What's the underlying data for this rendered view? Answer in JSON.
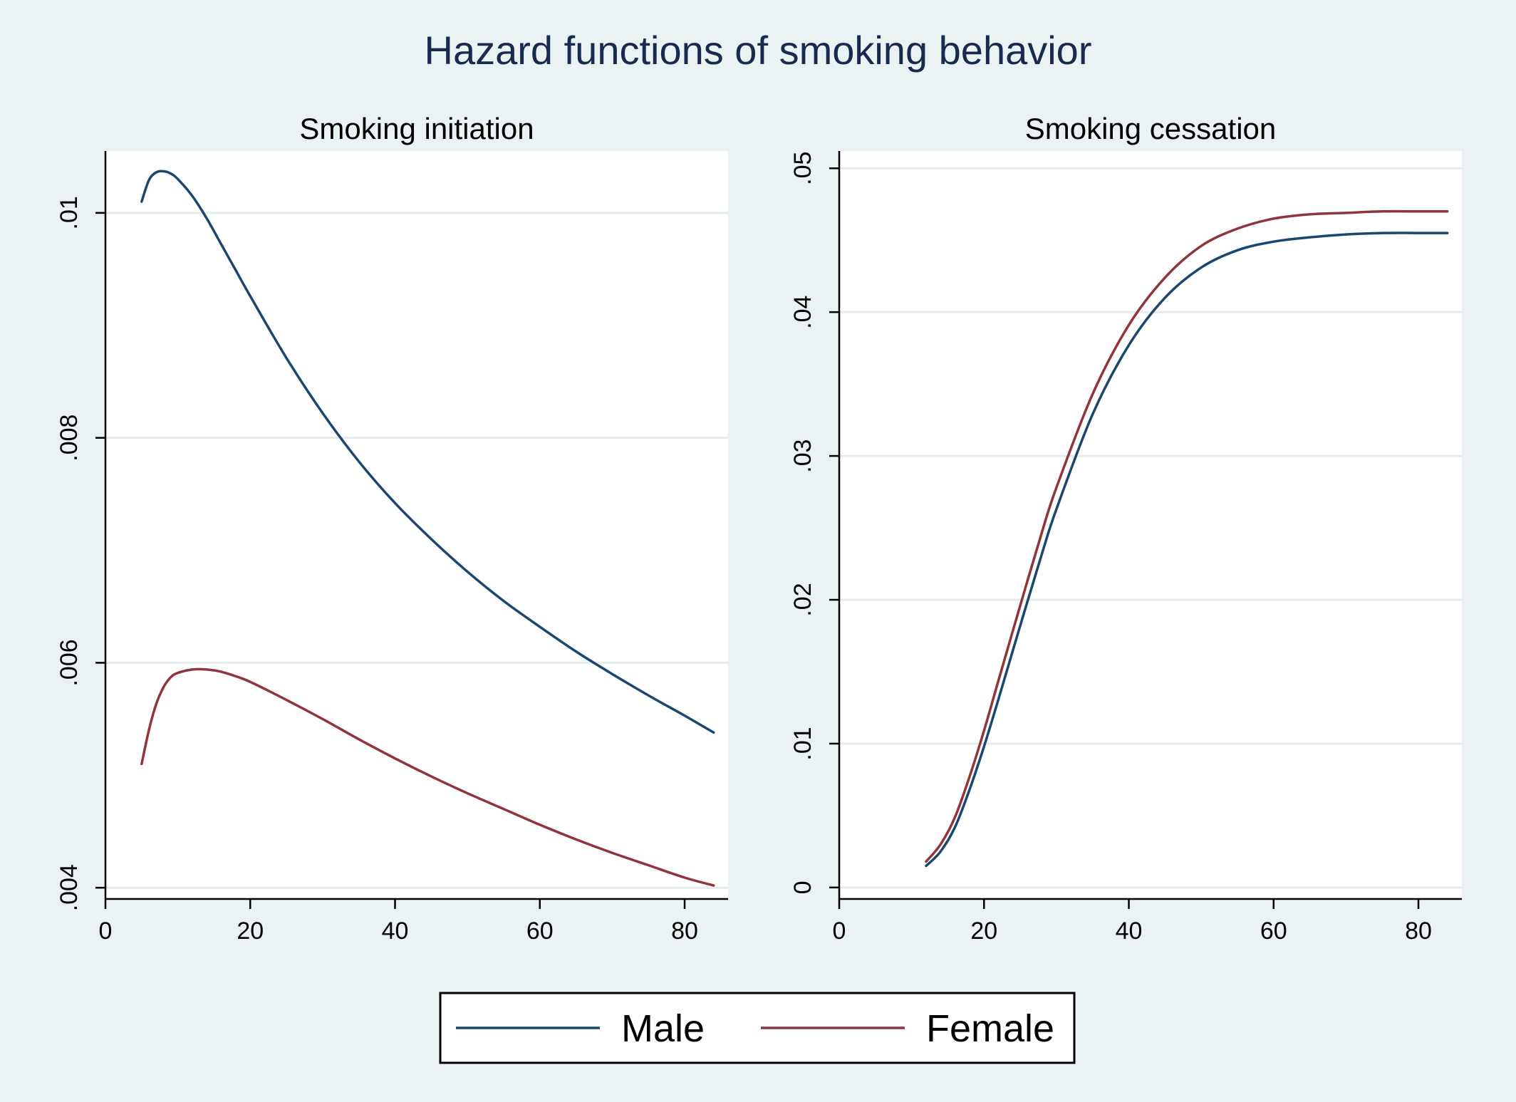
{
  "title": "Hazard functions of smoking behavior",
  "colors": {
    "background": "#eaf2f3",
    "plot_background": "#ffffff",
    "grid": "#e4ecee",
    "male": "#1a476f",
    "female": "#90353b"
  },
  "legend": {
    "position": "bottom",
    "items": [
      {
        "label": "Male",
        "color_key": "male"
      },
      {
        "label": "Female",
        "color_key": "female"
      }
    ]
  },
  "chart_data": [
    {
      "type": "line",
      "title": "Smoking initiation",
      "xlabel": "",
      "ylabel": "",
      "xlim": [
        0,
        86
      ],
      "ylim": [
        0.0039,
        0.01055
      ],
      "xticks": [
        0,
        20,
        40,
        60,
        80
      ],
      "xtick_labels": [
        "0",
        "20",
        "40",
        "60",
        "80"
      ],
      "yticks": [
        0.004,
        0.006,
        0.008,
        0.01
      ],
      "ytick_labels": [
        ".004",
        ".006",
        ".008",
        ".01"
      ],
      "grid": true,
      "series": [
        {
          "name": "Male",
          "color_key": "male",
          "x": [
            5,
            6,
            7,
            8,
            9,
            10,
            12,
            14,
            16,
            18,
            20,
            25,
            30,
            35,
            40,
            45,
            50,
            55,
            60,
            65,
            70,
            75,
            80,
            84
          ],
          "y": [
            0.0101,
            0.01029,
            0.01036,
            0.01037,
            0.01035,
            0.0103,
            0.01015,
            0.00995,
            0.00972,
            0.00949,
            0.00926,
            0.00871,
            0.00822,
            0.00779,
            0.00742,
            0.0071,
            0.00681,
            0.00655,
            0.00632,
            0.0061,
            0.0059,
            0.00571,
            0.00553,
            0.00538
          ]
        },
        {
          "name": "Female",
          "color_key": "female",
          "x": [
            5,
            6,
            7,
            8,
            9,
            10,
            12,
            14,
            16,
            18,
            20,
            25,
            30,
            35,
            40,
            45,
            50,
            55,
            60,
            65,
            70,
            75,
            80,
            84
          ],
          "y": [
            0.0051,
            0.0054,
            0.00563,
            0.00578,
            0.00587,
            0.00591,
            0.00594,
            0.00594,
            0.00592,
            0.00588,
            0.00583,
            0.00567,
            0.0055,
            0.00532,
            0.00515,
            0.00499,
            0.00484,
            0.0047,
            0.00456,
            0.00443,
            0.00431,
            0.0042,
            0.00409,
            0.00402
          ]
        }
      ]
    },
    {
      "type": "line",
      "title": "Smoking cessation",
      "xlabel": "",
      "ylabel": "",
      "xlim": [
        0,
        86
      ],
      "ylim": [
        -0.0008,
        0.0512
      ],
      "xticks": [
        0,
        20,
        40,
        60,
        80
      ],
      "xtick_labels": [
        "0",
        "20",
        "40",
        "60",
        "80"
      ],
      "yticks": [
        0,
        0.01,
        0.02,
        0.03,
        0.04,
        0.05
      ],
      "ytick_labels": [
        "0",
        ".01",
        ".02",
        ".03",
        ".04",
        ".05"
      ],
      "grid": true,
      "series": [
        {
          "name": "Male",
          "color_key": "male",
          "x": [
            12,
            14,
            16,
            18,
            20,
            22,
            25,
            28,
            30,
            35,
            40,
            45,
            50,
            55,
            60,
            65,
            70,
            75,
            80,
            84
          ],
          "y": [
            0.0015,
            0.0025,
            0.0042,
            0.0068,
            0.0098,
            0.0131,
            0.0182,
            0.0232,
            0.0263,
            0.0329,
            0.0377,
            0.041,
            0.0431,
            0.0443,
            0.0449,
            0.0452,
            0.0454,
            0.0455,
            0.0455,
            0.0455
          ]
        },
        {
          "name": "Female",
          "color_key": "female",
          "x": [
            12,
            14,
            16,
            18,
            20,
            22,
            25,
            28,
            30,
            35,
            40,
            45,
            50,
            55,
            60,
            65,
            70,
            75,
            80,
            84
          ],
          "y": [
            0.0018,
            0.003,
            0.0049,
            0.0077,
            0.0109,
            0.0144,
            0.0196,
            0.0247,
            0.0278,
            0.0343,
            0.0391,
            0.0424,
            0.0446,
            0.0458,
            0.0465,
            0.0468,
            0.0469,
            0.047,
            0.047,
            0.047
          ]
        }
      ]
    }
  ]
}
